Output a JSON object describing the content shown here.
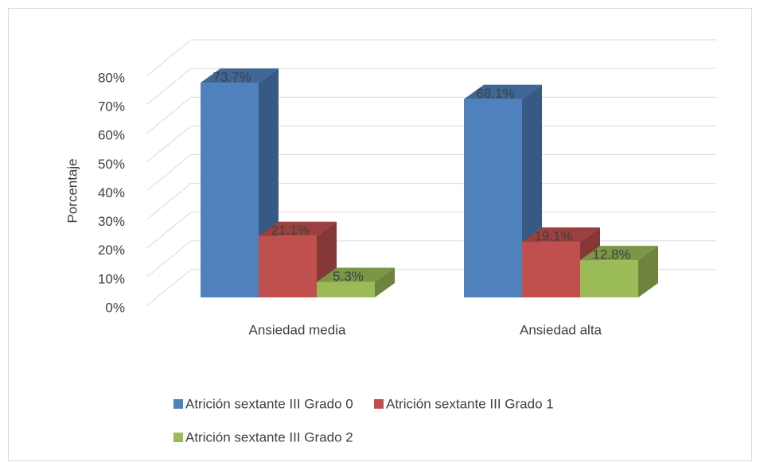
{
  "chart_data": {
    "type": "bar3d",
    "y_axis_label": "Porcentaje",
    "categories": [
      "Ansiedad media",
      "Ansiedad alta"
    ],
    "series": [
      {
        "name": "Atrición sextante III Grado 0",
        "color": "#4f81bd",
        "values": [
          73.7,
          68.1
        ],
        "value_labels": [
          "73.7%",
          "68.1%"
        ]
      },
      {
        "name": "Atrición sextante III Grado 1",
        "color": "#c0504d",
        "values": [
          21.1,
          19.1
        ],
        "value_labels": [
          "21.1%",
          "19.1%"
        ]
      },
      {
        "name": "Atrición sextante III Grado 2",
        "color": "#9bbb59",
        "values": [
          5.3,
          12.8
        ],
        "value_labels": [
          "5.3%",
          "12.8%"
        ]
      }
    ],
    "ylim": [
      0,
      80
    ],
    "yticks": [
      {
        "value": 0,
        "label": "0%"
      },
      {
        "value": 10,
        "label": "10%"
      },
      {
        "value": 20,
        "label": "20%"
      },
      {
        "value": 30,
        "label": "30%"
      },
      {
        "value": 40,
        "label": "40%"
      },
      {
        "value": 50,
        "label": "50%"
      },
      {
        "value": 60,
        "label": "60%"
      },
      {
        "value": 70,
        "label": "70%"
      },
      {
        "value": 80,
        "label": "80%"
      }
    ],
    "grid": true,
    "legend": "bottom"
  }
}
